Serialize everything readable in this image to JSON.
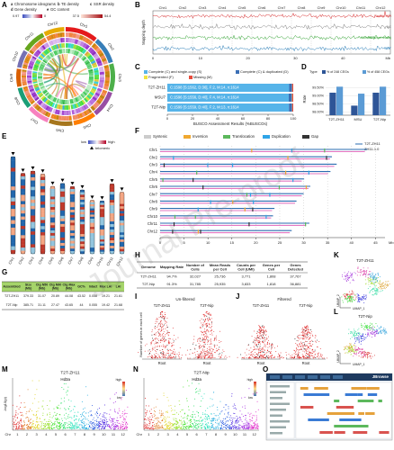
{
  "watermark": "Journal Pre-proof",
  "chromosomes": [
    "Chr1",
    "Chr2",
    "Chr3",
    "Chr4",
    "Chr5",
    "Chr6",
    "Chr7",
    "Chr8",
    "Chr9",
    "Chr10",
    "Chr11",
    "Chr12"
  ],
  "A": {
    "label": "A",
    "legend_keys": [
      "a",
      "b",
      "c",
      "d",
      "e"
    ],
    "legend": [
      "Chromosome ideograms",
      "TE density",
      "SSR density",
      "Gene density",
      "GC content"
    ],
    "scale": [
      "0.97",
      "0",
      "37.5",
      "54.4"
    ],
    "colors": [
      "#e41a1c",
      "#377eb8",
      "#4daf4a",
      "#984ea3",
      "#ff7f00",
      "#a6761d",
      "#f781bf",
      "#1b9e77",
      "#d95f02",
      "#7570b3",
      "#66a61e",
      "#e6ab02"
    ]
  },
  "B": {
    "label": "B",
    "y_label": "Mapping depth",
    "tracks": [
      {
        "name": "PacBio HiFi",
        "color": "#d62728"
      },
      {
        "name": "NC",
        "color": "#7f7f7f"
      },
      {
        "name": "Illumina (short reads)",
        "color": "#2ca02c"
      },
      {
        "name": "ONT",
        "color": "#1f77b4"
      }
    ],
    "x_ticks": [
      "0",
      "10",
      "20",
      "30",
      "40"
    ],
    "x_unit": "Mb"
  },
  "C": {
    "label": "C",
    "legend": [
      {
        "name": "Complete (C) and single-copy (S)",
        "color": "#56b4e9"
      },
      {
        "name": "Complete (C) & duplicated (D)",
        "color": "#3b6fb6"
      },
      {
        "name": "Fragmented (F)",
        "color": "#f0e442"
      },
      {
        "name": "Missing (M)",
        "color": "#e74c3c"
      }
    ],
    "rows": [
      {
        "name": "T2T-ZH11",
        "text": "C:1598 [S:1562, D:36], F:2, M:14, n:1614",
        "values": [
          1562,
          36,
          2,
          14
        ],
        "n": 1614
      },
      {
        "name": "MSU7",
        "text": "C:1596 [S:1556, D:40], F:4, M:14, n:1614",
        "values": [
          1556,
          40,
          4,
          14
        ],
        "n": 1614
      },
      {
        "name": "T2T-Nip",
        "text": "C:1599 [S:1559, D:40], F:2, M:13, n:1614",
        "values": [
          1559,
          40,
          2,
          13
        ],
        "n": 1614
      }
    ],
    "x_label": "BUSCO Assessment Results (%BUSCOs)",
    "xlim": [
      0,
      100
    ],
    "xticks": [
      0,
      20,
      40,
      60,
      80,
      100
    ]
  },
  "D": {
    "label": "D",
    "type": "bar",
    "legend_title": "Type",
    "y_label": "Rate",
    "categories": [
      "T2T-ZH11",
      "MSU",
      "T2T-Nip"
    ],
    "series": [
      {
        "name": "% of 248 CEGs",
        "color": "#2e5597",
        "values": [
          99.19,
          98.39,
          99.19
        ]
      },
      {
        "name": "% of 458 CEGs",
        "color": "#5b9bd5",
        "values": [
          99.56,
          99.13,
          99.56
        ]
      }
    ],
    "ylim": [
      97.8,
      99.8
    ],
    "yticks": [
      {
        "value": 98,
        "label": "98.00%"
      },
      {
        "value": 98.5,
        "label": "98.50%"
      },
      {
        "value": 99,
        "label": "99.00%"
      },
      {
        "value": 99.5,
        "label": "99.50%"
      }
    ]
  },
  "E": {
    "label": "E",
    "legend": [
      "low",
      "high",
      "telomeric"
    ]
  },
  "F": {
    "label": "F",
    "legend": [
      {
        "name": "Syntenic",
        "color": "#cccccc"
      },
      {
        "name": "Inversion",
        "color": "#f0a830"
      },
      {
        "name": "Translocation",
        "color": "#5cb85c"
      },
      {
        "name": "Duplication",
        "color": "#2fa4e7"
      },
      {
        "name": "Gap",
        "color": "#333333"
      }
    ],
    "series": [
      {
        "name": "T2T-ZH11",
        "color": "#2b6cb0",
        "values": [
          43.3,
          35.9,
          36.9,
          35.6,
          30.1,
          31.4,
          30.0,
          28.5,
          23.9,
          23.6,
          31.2,
          27.5
        ]
      },
      {
        "name": "ZH11-1.0",
        "color": "#e377c2",
        "values": [
          42.8,
          35.5,
          36.4,
          35.1,
          29.6,
          31.0,
          29.6,
          28.2,
          23.4,
          23.2,
          30.5,
          27.1
        ]
      }
    ],
    "xlim": [
      0,
      47
    ],
    "xticks": [
      0,
      5,
      10,
      15,
      20,
      25,
      30,
      35,
      40,
      45
    ],
    "x_unit": "Mb"
  },
  "G": {
    "label": "G",
    "header": [
      [
        "Assembled"
      ],
      [
        "Size",
        "(Mb)"
      ],
      [
        "Ctg N50",
        "(Mb)"
      ],
      [
        "Ctg N90",
        "(Mb)"
      ],
      [
        "Ctg Max",
        "(Mb)"
      ],
      [
        "GC%"
      ],
      [
        "Intact"
      ],
      [
        "Max LAI"
      ],
      [
        "LAI"
      ]
    ],
    "rows": [
      [
        "T2T-ZH11",
        "379.33",
        "31.07",
        "20.89",
        "44.08",
        "43.52",
        "0.058",
        "19.21",
        "21.61"
      ],
      [
        "T2T-Nip",
        "385.71",
        "31.11",
        "27.47",
        "43.65",
        "44",
        "0.055",
        "19.42",
        "21.68"
      ]
    ]
  },
  "H": {
    "label": "H",
    "header": [
      [
        "Genome"
      ],
      [
        "Mapping Rate"
      ],
      [
        "Number of",
        "Cells"
      ],
      [
        "Mean Reads",
        "per Cell"
      ],
      [
        "Counts per",
        "Cell (UMI)"
      ],
      [
        "Genes per",
        "Cell"
      ],
      [
        "Genes",
        "Detected"
      ]
    ],
    "rows": [
      [
        "T2T-ZH11",
        "94.7%",
        "32,027",
        "25,736",
        "3,771",
        "1,808",
        "37,767"
      ],
      [
        "T2T-Nip",
        "91.3%",
        "31,785",
        "25,935",
        "3,833",
        "1,818",
        "36,881"
      ]
    ]
  },
  "I": {
    "label": "I",
    "title": "Un-filtered",
    "subtitles": [
      "T2T-ZH11",
      "T2T-Nip"
    ],
    "y_label": "Number of genes in each cell",
    "x_label": "Root"
  },
  "J": {
    "label": "J",
    "title": "Filtered",
    "subtitles": [
      "T2T-ZH11",
      "T2T-Nip"
    ],
    "x_label": "Root"
  },
  "K": {
    "label": "K",
    "title": "T2T-ZH11",
    "x_label": "UMAP_1",
    "y_label": "UMAP_2"
  },
  "L": {
    "label": "L",
    "title": "T2T-Nip",
    "x_label": "UMAP_1",
    "y_label": "UMAP_2"
  },
  "M": {
    "label": "M",
    "title": "T2T-ZH11",
    "gene": "Hd3a",
    "y_label": "-log10(p)",
    "x_prefix": "Chr",
    "x_ticks": [
      "1",
      "2",
      "3",
      "4",
      "5",
      "6",
      "7",
      "8",
      "9",
      "10",
      "11",
      "12"
    ],
    "legend": [
      "low",
      "high"
    ]
  },
  "N": {
    "label": "N",
    "title": "T2T-Nip",
    "gene": "Hd3a",
    "y_label": "-log10(p)",
    "x_prefix": "Chr",
    "x_ticks": [
      "1",
      "2",
      "3",
      "4",
      "5",
      "6",
      "7",
      "8",
      "9",
      "10",
      "11",
      "12"
    ],
    "legend": [
      "low",
      "high"
    ]
  },
  "O": {
    "label": "O",
    "brand": "JBrowse"
  }
}
